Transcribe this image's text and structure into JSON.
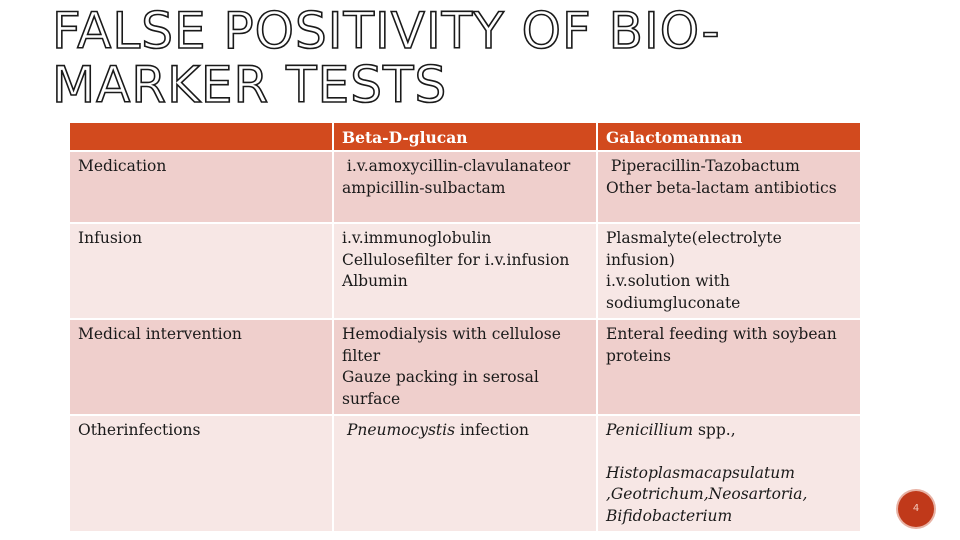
{
  "slide": {
    "title_line1": "FALSE POSITIVITY OF BIO-",
    "title_line2": "MARKER TESTS",
    "page_number": "4"
  },
  "table": {
    "headers": {
      "blank": "",
      "beta": "Beta-D-glucan",
      "galacto": "Galactomannan"
    },
    "rows": [
      {
        "label": "Medication",
        "beta": [
          " i.v.amoxycillin-clavulanateor",
          "ampicillin-sulbactam"
        ],
        "galacto": [
          " Piperacillin-Tazobactum",
          "Other beta-lactam antibiotics"
        ]
      },
      {
        "label": "Infusion",
        "beta": [
          "i.v.immunoglobulin",
          "Cellulosefilter for i.v.infusion",
          "Albumin"
        ],
        "galacto": [
          "Plasmalyte(electrolyte",
          "infusion)",
          "i.v.solution with",
          "sodiumgluconate"
        ]
      },
      {
        "label": "Medical intervention",
        "beta": [
          "Hemodialysis with cellulose",
          "filter",
          "Gauze packing in serosal",
          "surface"
        ],
        "galacto": [
          "Enteral feeding with soybean",
          "proteins"
        ]
      },
      {
        "label": "Otherinfections",
        "beta_italic": "Pneumocystis",
        "beta_rest": " infection",
        "galacto_italic_1": "Penicillium",
        "galacto_rest_1": " spp.,",
        "galacto_italic_2": "Histoplasmacapsulatum",
        "galacto_italic_3": ",Geotrichum,Neosartoria,",
        "galacto_italic_4": "Bifidobacterium"
      }
    ]
  }
}
